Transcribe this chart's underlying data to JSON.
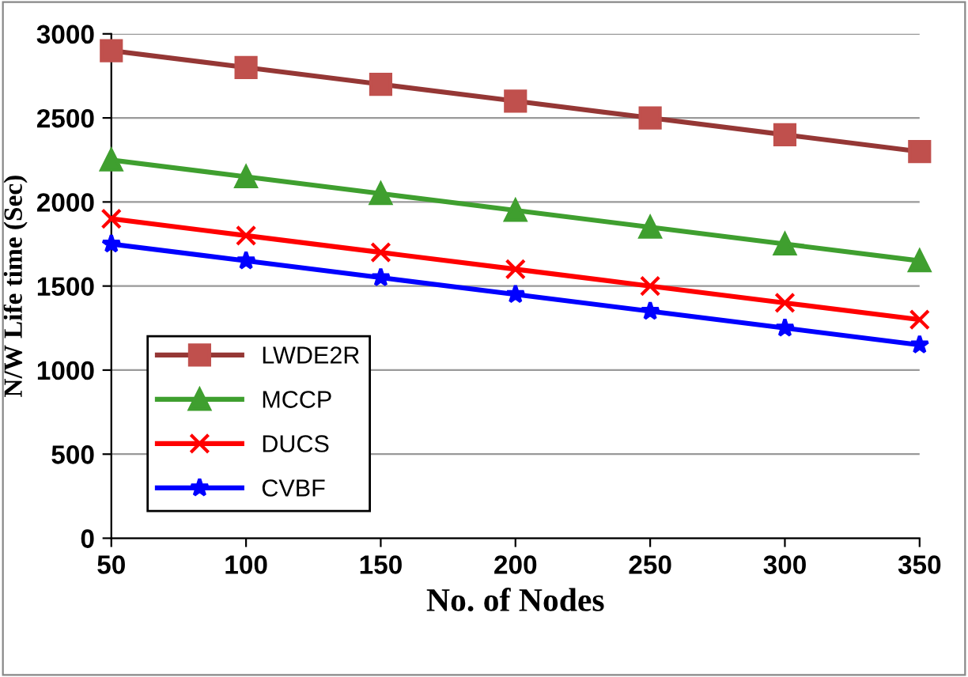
{
  "chart_data": {
    "type": "line",
    "xlabel": "No. of Nodes",
    "ylabel": "N/W Life time (Sec)",
    "x": [
      50,
      100,
      150,
      200,
      250,
      300,
      350
    ],
    "series": [
      {
        "name": "LWDE2R",
        "color": "#953735",
        "marker": "square",
        "values": [
          2900,
          2800,
          2700,
          2600,
          2500,
          2400,
          2300
        ]
      },
      {
        "name": "MCCP",
        "color": "#3f9f2f",
        "marker": "triangle",
        "values": [
          2250,
          2150,
          2050,
          1950,
          1850,
          1750,
          1650
        ]
      },
      {
        "name": "DUCS",
        "color": "#ff0000",
        "marker": "cross",
        "values": [
          1900,
          1800,
          1700,
          1600,
          1500,
          1400,
          1300
        ]
      },
      {
        "name": "CVBF",
        "color": "#0000ff",
        "marker": "star",
        "values": [
          1750,
          1650,
          1550,
          1450,
          1350,
          1250,
          1150
        ]
      }
    ],
    "xlim": [
      50,
      350
    ],
    "xticks": [
      50,
      100,
      150,
      200,
      250,
      300,
      350
    ],
    "ylim": [
      0,
      3000
    ],
    "yticks": [
      0,
      500,
      1000,
      1500,
      2000,
      2500,
      3000
    ],
    "grid": "y",
    "legend": "bottom left",
    "line_style": "solid"
  }
}
